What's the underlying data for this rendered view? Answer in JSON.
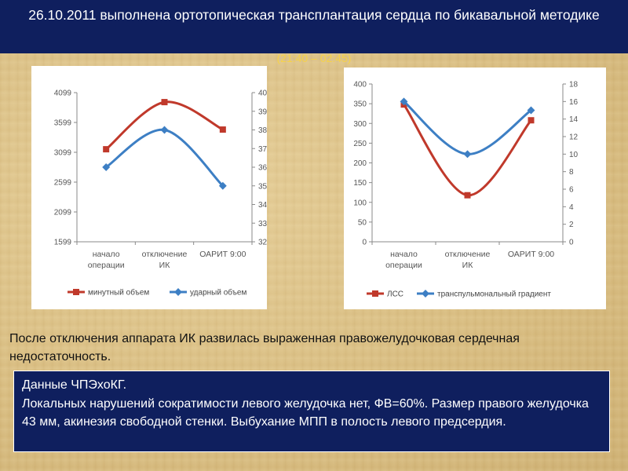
{
  "slide": {
    "title": "26.10.2011 выполнена ортотопическая трансплантация сердца по бикавальной методике",
    "time_range": "(21:40 – 02:45)",
    "body_text": "После отключения аппарата ИК развилась выраженная правожелудочковая сердечная недостаточность.",
    "info_heading": "Данные ЧПЭхоКГ.",
    "info_text": "Локальных нарушений сократимости левого желудочка нет, ФВ=60%. Размер правого желудочка 43 мм, акинезия свободной стенки. Выбухание МПП в полость левого предсердия."
  },
  "chart_data": [
    {
      "type": "line",
      "categories": [
        "начало операции",
        "отключение ИК",
        "ОАРИТ 9:00"
      ],
      "categories_display": [
        [
          "начало",
          "операции"
        ],
        [
          "отключение",
          "ИК"
        ],
        [
          "ОАРИТ 9:00"
        ]
      ],
      "y_left": {
        "ticks": [
          "1599",
          "2099",
          "2599",
          "3099",
          "3599",
          "4099"
        ],
        "lim": [
          1599,
          4099
        ]
      },
      "y_right": {
        "ticks": [
          "32",
          "33",
          "34",
          "35",
          "36",
          "37",
          "38",
          "39",
          "40"
        ],
        "lim": [
          32,
          40
        ]
      },
      "series": [
        {
          "name": "минутный объем",
          "axis": "left",
          "color": "#c0392b",
          "values": [
            3150,
            3940,
            3480
          ]
        },
        {
          "name": "ударный объем",
          "axis": "right",
          "color": "#3d7fc4",
          "values": [
            36,
            38,
            35
          ]
        }
      ],
      "legend_position": "bottom",
      "grid": false
    },
    {
      "type": "line",
      "categories": [
        "начало операции",
        "отключение ИК",
        "ОАРИТ 9:00"
      ],
      "categories_display": [
        [
          "начало",
          "операции"
        ],
        [
          "отключение",
          "ИК"
        ],
        [
          "ОАРИТ 9:00"
        ]
      ],
      "y_left": {
        "ticks": [
          "0",
          "50",
          "100",
          "150",
          "200",
          "250",
          "300",
          "350",
          "400"
        ],
        "lim": [
          0,
          400
        ]
      },
      "y_right": {
        "ticks": [
          "0",
          "2",
          "4",
          "6",
          "8",
          "10",
          "12",
          "14",
          "16",
          "18"
        ],
        "lim": [
          0,
          18
        ]
      },
      "series": [
        {
          "name": "ЛСС",
          "axis": "left",
          "color": "#c0392b",
          "values": [
            348,
            118,
            308
          ]
        },
        {
          "name": "транспульмональный градиент",
          "axis": "right",
          "color": "#3d7fc4",
          "values": [
            16,
            10,
            15
          ]
        }
      ],
      "legend_position": "bottom",
      "grid": false
    }
  ]
}
